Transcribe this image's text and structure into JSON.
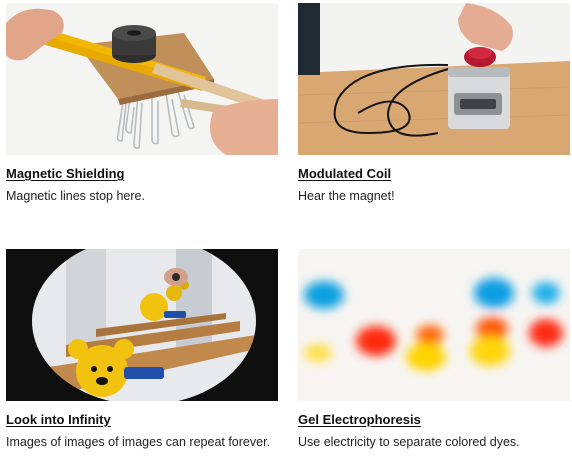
{
  "cards": [
    {
      "title": "Magnetic Shielding",
      "description": "Magnetic lines stop here."
    },
    {
      "title": "Modulated Coil",
      "description": "Hear the magnet!"
    },
    {
      "title": "Look into Infinity",
      "description": "Images of images of images can repeat forever."
    },
    {
      "title": "Gel Electrophoresis",
      "description": "Use electricity to separate colored dyes."
    }
  ],
  "colors": {
    "link_text": "#111111",
    "body_text": "#222222"
  }
}
